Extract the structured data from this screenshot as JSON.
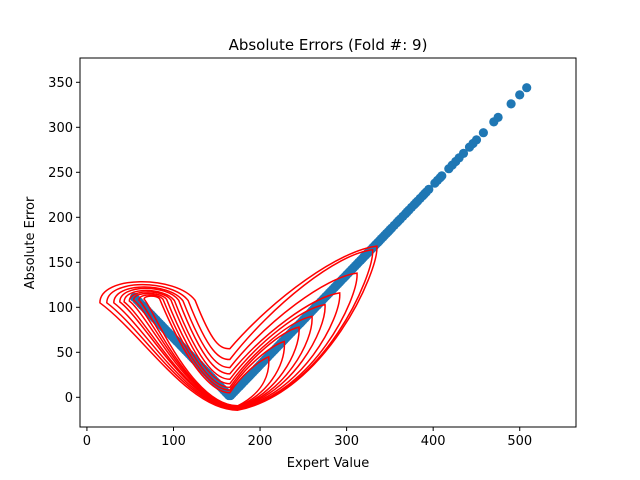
{
  "chart_data": {
    "type": "scatter",
    "title": "Absolute Errors (Fold #: 9)",
    "xlabel": "Expert Value",
    "ylabel": "Absolute Error",
    "xlim": [
      -8,
      565
    ],
    "ylim": [
      -33,
      377
    ],
    "xticks": [
      0,
      100,
      200,
      300,
      400,
      500
    ],
    "yticks": [
      0,
      50,
      100,
      150,
      200,
      250,
      300,
      350
    ],
    "grid": false,
    "legend": "none",
    "colors": {
      "points": "#1f77b4",
      "density": "#ff0000",
      "axes": "#000000"
    },
    "series": [
      {
        "type": "scatter",
        "x": [
          55,
          58,
          60,
          62,
          64,
          66,
          68,
          70,
          72,
          74,
          76,
          78,
          80,
          82,
          84,
          86,
          88,
          90,
          92,
          94,
          96,
          98,
          100,
          102,
          104,
          106,
          108,
          110,
          112,
          114,
          116,
          118,
          120,
          122,
          124,
          126,
          128,
          130,
          132,
          134,
          136,
          138,
          140,
          142,
          144,
          146,
          148,
          150,
          152,
          154,
          156,
          158,
          160,
          162,
          164,
          166,
          168,
          170,
          172,
          174,
          176,
          178,
          180,
          182,
          184,
          186,
          188,
          190,
          192,
          194,
          196,
          198,
          200,
          202,
          204,
          206,
          208,
          210,
          212,
          214,
          216,
          218,
          220,
          222,
          224,
          226,
          228,
          230,
          232,
          234,
          236,
          238,
          240,
          242,
          244,
          246,
          248,
          250,
          252,
          254,
          256,
          258,
          260,
          262,
          264,
          266,
          268,
          270,
          272,
          274,
          276,
          278,
          280,
          282,
          284,
          286,
          288,
          290,
          292,
          294,
          296,
          298,
          300,
          302,
          304,
          306,
          308,
          310,
          312,
          314,
          316,
          318,
          320,
          322,
          324,
          326,
          328,
          330,
          332,
          334,
          336,
          338,
          340,
          342,
          344,
          346,
          348,
          350,
          352,
          355,
          358,
          360,
          362,
          365,
          368,
          370,
          372,
          375,
          378,
          380,
          382,
          385,
          388,
          390,
          392,
          395,
          402,
          405,
          408,
          410,
          418,
          422,
          426,
          430,
          435,
          442,
          446,
          450,
          458,
          470,
          475,
          490,
          500,
          508
        ],
        "y": [
          111,
          108,
          106,
          104,
          102,
          100,
          98,
          96,
          94,
          92,
          90,
          88,
          86,
          84,
          82,
          80,
          78,
          76,
          74,
          72,
          70,
          68,
          66,
          64,
          62,
          60,
          58,
          56,
          54,
          52,
          50,
          48,
          46,
          44,
          42,
          40,
          38,
          36,
          34,
          32,
          30,
          28,
          26,
          24,
          22,
          20,
          18,
          16,
          14,
          12,
          10,
          8,
          6,
          4,
          2,
          2,
          4,
          6,
          8,
          10,
          12,
          14,
          16,
          18,
          20,
          22,
          24,
          26,
          28,
          30,
          32,
          34,
          36,
          38,
          40,
          42,
          44,
          46,
          48,
          50,
          52,
          54,
          56,
          58,
          60,
          62,
          64,
          66,
          68,
          70,
          72,
          74,
          76,
          78,
          80,
          82,
          84,
          86,
          88,
          90,
          92,
          94,
          96,
          98,
          100,
          102,
          104,
          106,
          108,
          110,
          112,
          114,
          116,
          118,
          120,
          122,
          124,
          126,
          128,
          130,
          132,
          134,
          136,
          138,
          140,
          142,
          144,
          146,
          148,
          150,
          152,
          154,
          156,
          158,
          160,
          162,
          164,
          166,
          168,
          170,
          172,
          174,
          176,
          178,
          180,
          182,
          184,
          186,
          188,
          191,
          194,
          196,
          198,
          201,
          204,
          206,
          208,
          211,
          214,
          216,
          218,
          221,
          224,
          226,
          228,
          231,
          238,
          241,
          244,
          246,
          254,
          258,
          262,
          266,
          271,
          278,
          282,
          286,
          294,
          306,
          311,
          326,
          336,
          344
        ]
      },
      {
        "type": "density-contour",
        "levels": [
          {
            "left": {
              "cx": 70,
              "cy": 105,
              "rx": 55,
              "ry": 28
            },
            "valley": [
              165,
              54
            ],
            "right": [
              335,
              168
            ]
          },
          {
            "left": {
              "cx": 70,
              "cy": 105,
              "rx": 47,
              "ry": 24
            },
            "valley": [
              165,
              42
            ],
            "right": [
              330,
              164
            ]
          },
          {
            "left": {
              "cx": 71,
              "cy": 105,
              "rx": 40,
              "ry": 21
            },
            "valley": [
              165,
              33
            ],
            "right": [
              312,
              138
            ]
          },
          {
            "left": {
              "cx": 72,
              "cy": 106,
              "rx": 34,
              "ry": 18
            },
            "valley": [
              165,
              26
            ],
            "right": [
              292,
              116
            ]
          },
          {
            "left": {
              "cx": 72,
              "cy": 106,
              "rx": 29,
              "ry": 15
            },
            "valley": [
              165,
              20
            ],
            "right": [
              275,
              103
            ]
          },
          {
            "left": {
              "cx": 73,
              "cy": 107,
              "rx": 24,
              "ry": 12
            },
            "valley": [
              165,
              15
            ],
            "right": [
              260,
              90
            ]
          },
          {
            "left": {
              "cx": 73,
              "cy": 108,
              "rx": 19,
              "ry": 9
            },
            "valley": [
              165,
              11
            ],
            "right": [
              245,
              78
            ]
          },
          {
            "left": {
              "cx": 74,
              "cy": 108,
              "rx": 14,
              "ry": 7
            },
            "valley": [
              165,
              8
            ],
            "right": [
              228,
              62
            ]
          },
          {
            "left": {
              "cx": 75,
              "cy": 109,
              "rx": 9,
              "ry": 4
            },
            "valley": [
              165,
              5
            ],
            "right": [
              210,
              45
            ]
          }
        ]
      }
    ]
  }
}
